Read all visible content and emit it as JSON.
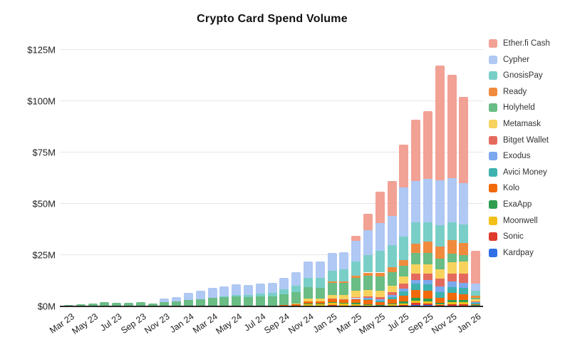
{
  "title": "Crypto Card Spend Volume",
  "chart_data": {
    "type": "bar",
    "stacked": true,
    "unit": "USD millions",
    "title": "Crypto Card Spend Volume",
    "xlabel": "",
    "ylabel": "",
    "ylim": [
      0,
      125
    ],
    "grid": true,
    "legend_position": "right",
    "x_tick_every": 2,
    "yticks": [
      {
        "label": "$0M",
        "value": 0
      },
      {
        "label": "$25M",
        "value": 25
      },
      {
        "label": "$50M",
        "value": 50
      },
      {
        "label": "$75M",
        "value": 75
      },
      {
        "label": "$100M",
        "value": 100
      },
      {
        "label": "$125M",
        "value": 125
      }
    ],
    "categories": [
      "Mar 23",
      "Apr 23",
      "May 23",
      "Jun 23",
      "Jul 23",
      "Aug 23",
      "Sep 23",
      "Oct 23",
      "Nov 23",
      "Dec 23",
      "Jan 24",
      "Feb 24",
      "Mar 24",
      "Apr 24",
      "May 24",
      "Jun 24",
      "Jul 24",
      "Aug 24",
      "Sep 24",
      "Oct 24",
      "Nov 24",
      "Dec 24",
      "Jan 25",
      "Feb 25",
      "Mar 25",
      "Apr 25",
      "May 25",
      "Jun 25",
      "Jul 25",
      "Aug 25",
      "Sep 25",
      "Oct 25",
      "Nov 25",
      "Dec 25",
      "Jan 26"
    ],
    "stack_order": "last series in list is drawn at the bottom of each bar; first series (Ether.fi Cash) is on top",
    "series": [
      {
        "name": "Ether.fi Cash",
        "color": "#F2A195",
        "values": [
          0,
          0,
          0,
          0,
          0,
          0,
          0,
          0,
          0,
          0,
          0,
          0,
          0,
          0,
          0,
          0,
          0,
          0,
          0,
          0,
          0,
          0,
          0,
          0,
          2.5,
          8,
          15.5,
          17,
          21,
          30,
          33,
          56,
          50.5,
          42,
          16
        ]
      },
      {
        "name": "Cypher",
        "color": "#AFC8F4",
        "values": [
          0,
          0,
          0,
          0,
          0,
          0,
          0,
          0,
          2,
          2.2,
          3.5,
          4,
          4.7,
          4.8,
          5,
          4.6,
          4.7,
          4.7,
          5.5,
          6.5,
          8,
          7.8,
          8.5,
          8.5,
          10,
          12,
          13.5,
          14,
          24,
          20,
          21,
          22,
          21.5,
          20,
          3.4
        ]
      },
      {
        "name": "GnosisPay",
        "color": "#79CFC8",
        "values": [
          0,
          0,
          0,
          0,
          0,
          0,
          0,
          0,
          0,
          0,
          0,
          0,
          0,
          0.5,
          1,
          1.2,
          1.5,
          1.8,
          2.5,
          3.2,
          4.5,
          4.8,
          5.5,
          5.8,
          7,
          8.5,
          10.5,
          11,
          11.5,
          10.5,
          9.5,
          10.5,
          8.6,
          9,
          2.3
        ]
      },
      {
        "name": "Ready",
        "color": "#F08B3D",
        "values": [
          0,
          0,
          0,
          0,
          0,
          0,
          0,
          0,
          0,
          0,
          0,
          0,
          0,
          0,
          0,
          0,
          0,
          0,
          0,
          0,
          0,
          0,
          0.5,
          0.7,
          1,
          1.5,
          2,
          2.5,
          2.7,
          4.5,
          5.5,
          5.8,
          6.7,
          6,
          1
        ]
      },
      {
        "name": "Holyheld",
        "color": "#69BD85",
        "values": [
          0.7,
          0.9,
          1.4,
          2.1,
          1.9,
          1.7,
          2,
          1.5,
          2,
          2.4,
          3,
          3.4,
          4,
          4.2,
          4.4,
          4.2,
          4.5,
          4.6,
          5,
          5.5,
          5.8,
          5.5,
          5.8,
          5.8,
          6.5,
          7,
          7,
          6.5,
          5.2,
          5.5,
          5.5,
          5.2,
          4,
          3,
          0.8
        ]
      },
      {
        "name": "Metamask",
        "color": "#F7D35E",
        "values": [
          0,
          0,
          0,
          0,
          0,
          0,
          0,
          0,
          0,
          0,
          0,
          0,
          0,
          0,
          0,
          0,
          0,
          0,
          0,
          0.3,
          1.2,
          1.4,
          2,
          2.2,
          3,
          3.2,
          3,
          3.2,
          3.5,
          4.5,
          4.5,
          4.6,
          5.7,
          6,
          1
        ]
      },
      {
        "name": "Bitget Wallet",
        "color": "#E56A5E",
        "values": [
          0,
          0,
          0,
          0,
          0,
          0,
          0,
          0,
          0,
          0,
          0,
          0,
          0,
          0,
          0,
          0,
          0,
          0,
          0,
          0,
          0,
          0,
          0.2,
          0.2,
          0.5,
          0.8,
          1,
          1.3,
          2.3,
          3,
          3,
          3.5,
          4,
          4.5,
          0.5
        ]
      },
      {
        "name": "Exodus",
        "color": "#7CA8EE",
        "values": [
          0,
          0,
          0,
          0,
          0,
          0,
          0,
          0,
          0,
          0,
          0,
          0,
          0,
          0,
          0,
          0,
          0,
          0,
          0,
          0,
          0,
          0,
          0,
          0,
          0.3,
          0.5,
          0.8,
          1,
          1.5,
          2,
          2.2,
          2.8,
          2.5,
          2.5,
          0.4
        ]
      },
      {
        "name": "Avici Money",
        "color": "#3EB2AF",
        "values": [
          0,
          0,
          0,
          0,
          0,
          0,
          0,
          0,
          0,
          0,
          0,
          0,
          0,
          0,
          0,
          0,
          0,
          0,
          0,
          0,
          0,
          0,
          0,
          0,
          0.3,
          0.5,
          0.7,
          1,
          2,
          3,
          3,
          2.9,
          2.8,
          3,
          0.4
        ]
      },
      {
        "name": "Kolo",
        "color": "#F2690C",
        "values": [
          0,
          0,
          0,
          0,
          0,
          0,
          0,
          0,
          0,
          0,
          0,
          0,
          0,
          0,
          0,
          0,
          0,
          0,
          0.3,
          0.6,
          1.2,
          1,
          1.5,
          1.4,
          1.8,
          1.8,
          1.2,
          2,
          3,
          4,
          4,
          2.5,
          3.5,
          3,
          0.5
        ]
      },
      {
        "name": "ExaApp",
        "color": "#2F9E50",
        "values": [
          0,
          0,
          0,
          0,
          0,
          0,
          0,
          0,
          0,
          0,
          0,
          0,
          0,
          0,
          0,
          0,
          0,
          0,
          0,
          0,
          0.2,
          0.2,
          0.4,
          0.4,
          0.5,
          0.4,
          0.3,
          0.5,
          0.8,
          1.2,
          1.2,
          0.6,
          1,
          1,
          0.2
        ]
      },
      {
        "name": "Moonwell",
        "color": "#F2C117",
        "values": [
          0,
          0,
          0,
          0,
          0,
          0,
          0,
          0,
          0,
          0,
          0.2,
          0.2,
          0.3,
          0.3,
          0.3,
          0.3,
          0.3,
          0.3,
          0.5,
          0.5,
          0.8,
          0.8,
          1,
          1,
          0.8,
          0.5,
          0.3,
          0.5,
          0.7,
          1.2,
          1.1,
          0.5,
          1,
          1,
          0.2
        ]
      },
      {
        "name": "Sonic",
        "color": "#DF3A2E",
        "values": [
          0,
          0,
          0,
          0,
          0,
          0,
          0,
          0,
          0,
          0,
          0,
          0,
          0,
          0,
          0,
          0,
          0,
          0,
          0,
          0,
          0.3,
          0.3,
          0.6,
          0.5,
          0.3,
          0.3,
          0.2,
          0.3,
          0.5,
          0.8,
          0.8,
          0.4,
          0.7,
          0.6,
          0.2
        ]
      },
      {
        "name": "Kardpay",
        "color": "#2F6FE6",
        "values": [
          0,
          0,
          0,
          0,
          0,
          0,
          0,
          0,
          0,
          0,
          0,
          0,
          0,
          0,
          0,
          0,
          0,
          0,
          0,
          0,
          0,
          0,
          0,
          0,
          0,
          0,
          0,
          0.2,
          0.3,
          0.8,
          0.7,
          0.2,
          0.5,
          0.4,
          0.1
        ]
      }
    ]
  }
}
